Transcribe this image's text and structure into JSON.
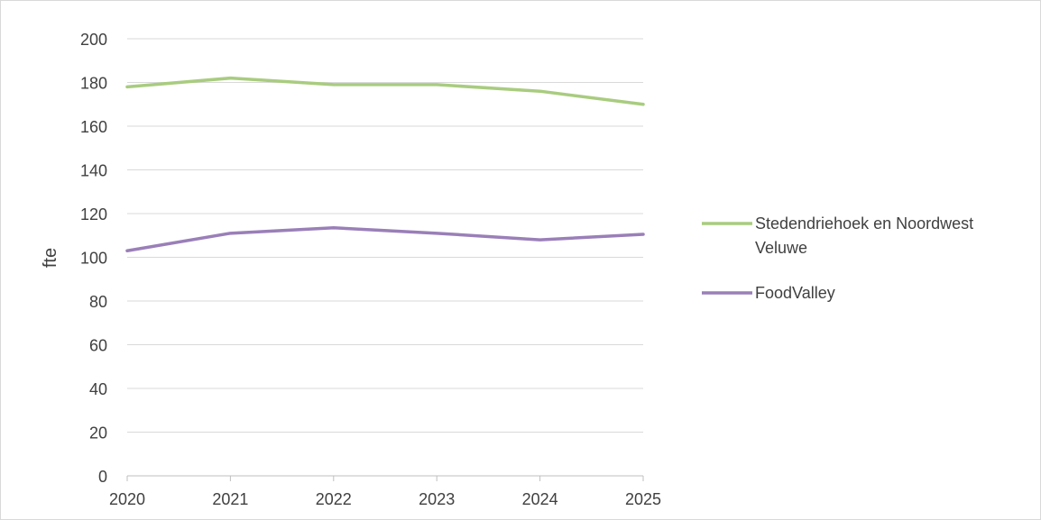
{
  "chart_data": {
    "type": "line",
    "title": "",
    "xlabel": "",
    "ylabel": "fte",
    "x": [
      2020,
      2021,
      2022,
      2023,
      2024,
      2025
    ],
    "xlim": [
      2020,
      2025
    ],
    "ylim": [
      0,
      200
    ],
    "yticks": [
      0,
      20,
      40,
      60,
      80,
      100,
      120,
      140,
      160,
      180,
      200
    ],
    "grid": "horizontal",
    "legend_position": "right",
    "series": [
      {
        "name": "Stedendriehoek en Noordwest Veluwe",
        "name_lines": [
          "Stedendriehoek en Noordwest",
          "Veluwe"
        ],
        "color": "#a9cc7f",
        "values": [
          178,
          182,
          179,
          179,
          176,
          170
        ]
      },
      {
        "name": "FoodValley",
        "name_lines": [
          "FoodValley"
        ],
        "color": "#9a7fb8",
        "values": [
          103,
          111,
          113.5,
          111,
          108,
          110.5
        ]
      }
    ]
  }
}
